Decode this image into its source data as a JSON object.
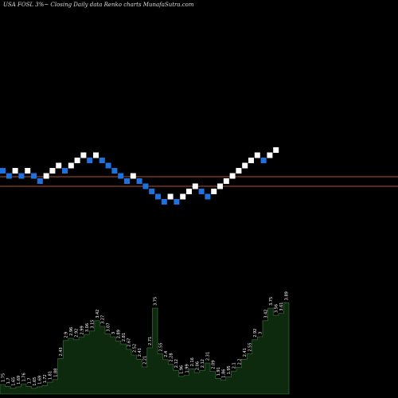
{
  "header": {
    "caption": "USA FOSL 3%~  Closing Daily data  Renko  charts MunafaSutra.com"
  },
  "chart_data": {
    "type": "renko",
    "symbol": "FOSL",
    "chart_type_label": "Renko",
    "period": "Daily",
    "brick_size_percent": 3,
    "reference_levels": [
      1.82,
      1.7
    ],
    "reference_line_color": "#b4502a",
    "up_color": "#ffffff",
    "down_color": "#1e72e0",
    "bricks": [
      {
        "dir": "down",
        "level": 0.0
      },
      {
        "dir": "down",
        "level": -1.0
      },
      {
        "dir": "up",
        "level": 0.0
      },
      {
        "dir": "down",
        "level": -1.0
      },
      {
        "dir": "up",
        "level": 0.0
      },
      {
        "dir": "down",
        "level": -1.0
      },
      {
        "dir": "down",
        "level": -2.0
      },
      {
        "dir": "up",
        "level": -1.0
      },
      {
        "dir": "up",
        "level": 0.0
      },
      {
        "dir": "up",
        "level": 1.0
      },
      {
        "dir": "down",
        "level": 0.0
      },
      {
        "dir": "up",
        "level": 1.0
      },
      {
        "dir": "up",
        "level": 2.0
      },
      {
        "dir": "up",
        "level": 3.0
      },
      {
        "dir": "down",
        "level": 2.0
      },
      {
        "dir": "up",
        "level": 3.0
      },
      {
        "dir": "down",
        "level": 2.0
      },
      {
        "dir": "down",
        "level": 1.0
      },
      {
        "dir": "down",
        "level": 0.0
      },
      {
        "dir": "down",
        "level": -1.0
      },
      {
        "dir": "down",
        "level": -2.0
      },
      {
        "dir": "up",
        "level": -1.0
      },
      {
        "dir": "down",
        "level": -2.0
      },
      {
        "dir": "down",
        "level": -3.0
      },
      {
        "dir": "down",
        "level": -4.0
      },
      {
        "dir": "down",
        "level": -5.0
      },
      {
        "dir": "down",
        "level": -6.0
      },
      {
        "dir": "up",
        "level": -5.0
      },
      {
        "dir": "down",
        "level": -6.0
      },
      {
        "dir": "up",
        "level": -5.0
      },
      {
        "dir": "up",
        "level": -4.0
      },
      {
        "dir": "up",
        "level": -3.0
      },
      {
        "dir": "down",
        "level": -4.0
      },
      {
        "dir": "down",
        "level": -5.0
      },
      {
        "dir": "up",
        "level": -4.0
      },
      {
        "dir": "up",
        "level": -3.0
      },
      {
        "dir": "up",
        "level": -2.0
      },
      {
        "dir": "up",
        "level": -1.0
      },
      {
        "dir": "up",
        "level": 0.0
      },
      {
        "dir": "up",
        "level": 1.0
      },
      {
        "dir": "up",
        "level": 2.0
      },
      {
        "dir": "up",
        "level": 3.0
      },
      {
        "dir": "down",
        "level": 2.0
      },
      {
        "dir": "up",
        "level": 3.0
      },
      {
        "dir": "up",
        "level": 4.0
      }
    ],
    "lower_panel": {
      "fill_color": "#0e2a0e",
      "stroke_color": "#3c7a3c",
      "values": [
        1.75,
        1.7,
        1.65,
        1.69,
        1.76,
        1.7,
        1.65,
        1.69,
        1.72,
        1.81,
        1.88,
        2.43,
        2.9,
        2.96,
        2.92,
        2.99,
        3.06,
        3.15,
        3.42,
        3.27,
        3.07,
        3.0,
        2.89,
        2.81,
        2.67,
        2.52,
        2.41,
        2.21,
        2.71,
        3.75,
        2.55,
        2.4,
        2.28,
        2.12,
        1.96,
        1.99,
        2.16,
        2.06,
        2.12,
        2.31,
        2.09,
        1.91,
        1.86,
        1.95,
        2.1,
        2.2,
        2.41,
        2.55,
        2.92,
        3.0,
        3.42,
        3.75,
        3.56,
        3.61,
        3.89
      ],
      "labels": [
        "1.75",
        "1.7",
        "1.65",
        "1.69",
        "1.76",
        "1.7",
        "1.65",
        "1.69",
        "1.72",
        "1.81",
        "1.88",
        "2.43",
        "2.9",
        "2.96",
        "2.92",
        "2.99",
        "3.06",
        "3.15",
        "3.42",
        "3.27",
        "3.07",
        "3",
        "2.89",
        "2.81",
        "2.67",
        "2.52",
        "2.41",
        "2.21",
        "2.71",
        "3.75",
        "2.55",
        "2.4",
        "2.28",
        "2.12",
        "1.96",
        "1.99",
        "2.16",
        "2.06",
        "2.12",
        "2.31",
        "2.09",
        "1.91",
        "1.86",
        "1.95",
        "2.1",
        "2.2",
        "2.41",
        "2.55",
        "2.92",
        "3",
        "3.42",
        "3.75",
        "3.56",
        "3.61",
        "3.89"
      ]
    }
  }
}
